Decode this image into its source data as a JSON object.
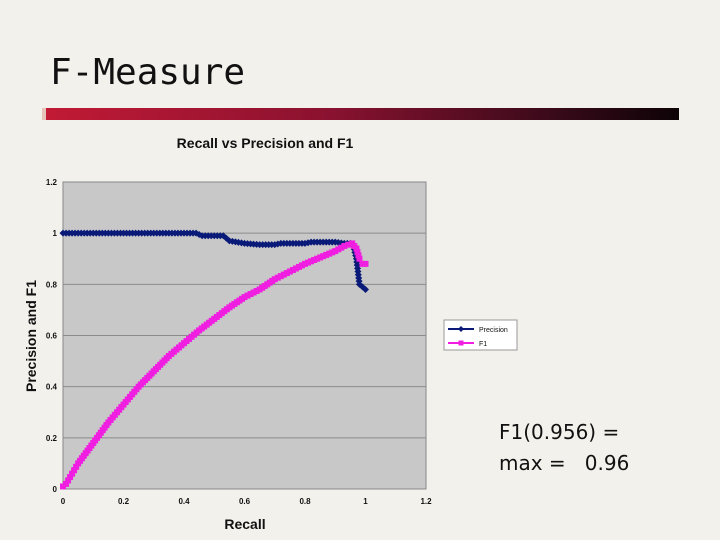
{
  "slide": {
    "title": "F-Measure",
    "annotation_line1": "F1(0.956) =",
    "annotation_line2": "max =   0.96"
  },
  "colors": {
    "precision": "#0a1a78",
    "f1": "#f01ee0",
    "plot_bg": "#c8c8c8",
    "grid": "#8c8c8c"
  },
  "chart_data": {
    "type": "line",
    "title": "Recall vs Precision and F1",
    "xlabel": "Recall",
    "ylabel": "Precision and F1",
    "xlim": [
      0,
      1.2
    ],
    "ylim": [
      0,
      1.2
    ],
    "xticks": [
      "0",
      "0.2",
      "0.4",
      "0.6",
      "0.8",
      "1",
      "1.2"
    ],
    "yticks": [
      "0",
      "0.2",
      "0.4",
      "0.6",
      "0.8",
      "1",
      "1.2"
    ],
    "grid": true,
    "legend_position": "right",
    "series": [
      {
        "name": "Precision",
        "color": "#0a1a78",
        "marker": "diamond",
        "points": [
          [
            0.0,
            1.0
          ],
          [
            0.1,
            1.0
          ],
          [
            0.2,
            1.0
          ],
          [
            0.3,
            1.0
          ],
          [
            0.4,
            1.0
          ],
          [
            0.44,
            1.0
          ],
          [
            0.46,
            0.99
          ],
          [
            0.53,
            0.99
          ],
          [
            0.55,
            0.97
          ],
          [
            0.6,
            0.96
          ],
          [
            0.65,
            0.955
          ],
          [
            0.7,
            0.955
          ],
          [
            0.72,
            0.96
          ],
          [
            0.8,
            0.96
          ],
          [
            0.82,
            0.965
          ],
          [
            0.9,
            0.965
          ],
          [
            0.93,
            0.96
          ],
          [
            0.95,
            0.96
          ],
          [
            0.96,
            0.95
          ],
          [
            0.97,
            0.9
          ],
          [
            0.975,
            0.85
          ],
          [
            0.98,
            0.8
          ],
          [
            1.0,
            0.78
          ]
        ]
      },
      {
        "name": "F1",
        "color": "#f01ee0",
        "marker": "square",
        "points": [
          [
            0.0,
            0.01
          ],
          [
            0.01,
            0.02
          ],
          [
            0.03,
            0.06
          ],
          [
            0.05,
            0.1
          ],
          [
            0.1,
            0.18
          ],
          [
            0.15,
            0.26
          ],
          [
            0.2,
            0.33
          ],
          [
            0.25,
            0.4
          ],
          [
            0.3,
            0.46
          ],
          [
            0.35,
            0.52
          ],
          [
            0.4,
            0.57
          ],
          [
            0.45,
            0.62
          ],
          [
            0.5,
            0.665
          ],
          [
            0.55,
            0.71
          ],
          [
            0.6,
            0.75
          ],
          [
            0.65,
            0.78
          ],
          [
            0.7,
            0.82
          ],
          [
            0.75,
            0.85
          ],
          [
            0.8,
            0.88
          ],
          [
            0.85,
            0.905
          ],
          [
            0.9,
            0.93
          ],
          [
            0.93,
            0.95
          ],
          [
            0.956,
            0.96
          ],
          [
            0.97,
            0.94
          ],
          [
            0.98,
            0.9
          ],
          [
            0.99,
            0.88
          ],
          [
            1.0,
            0.88
          ]
        ]
      }
    ]
  }
}
